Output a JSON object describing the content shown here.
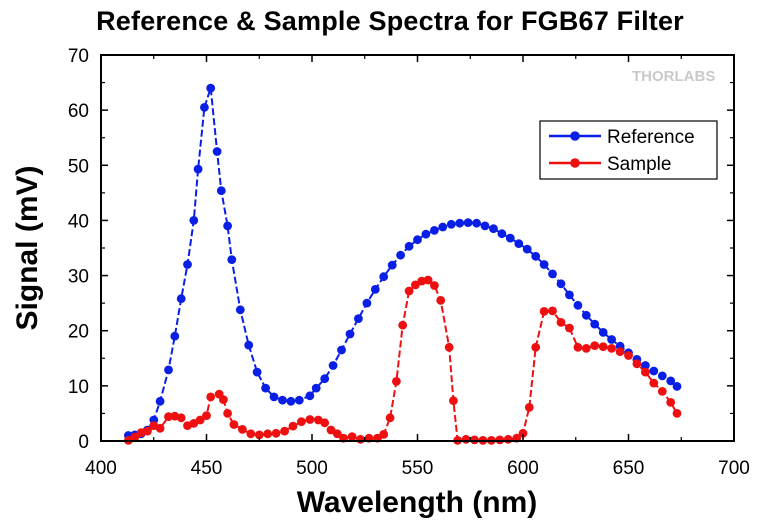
{
  "chart_data": {
    "type": "line",
    "title": "Reference & Sample Spectra for FGB67 Filter",
    "xlabel": "Wavelength (nm)",
    "ylabel": "Signal (mV)",
    "xlim": [
      400,
      700
    ],
    "ylim": [
      0,
      70
    ],
    "x_ticks": [
      "400",
      "450",
      "500",
      "550",
      "600",
      "650",
      "700"
    ],
    "y_ticks": [
      "0",
      "10",
      "20",
      "30",
      "40",
      "50",
      "60",
      "70"
    ],
    "grid": false,
    "legend_position": "top-right",
    "watermark": "THORLABS",
    "series": [
      {
        "name": "Reference",
        "color": "#0a1fe6",
        "points": [
          [
            413,
            1.0
          ],
          [
            416,
            1.1
          ],
          [
            419,
            1.3
          ],
          [
            422,
            2.0
          ],
          [
            425,
            3.8
          ],
          [
            428,
            7.2
          ],
          [
            432,
            12.9
          ],
          [
            435,
            19.0
          ],
          [
            438,
            25.8
          ],
          [
            441,
            32.0
          ],
          [
            444,
            40.0
          ],
          [
            446,
            49.3
          ],
          [
            449,
            60.5
          ],
          [
            452,
            64.0
          ],
          [
            455,
            52.5
          ],
          [
            457,
            45.4
          ],
          [
            460,
            39.0
          ],
          [
            462,
            32.9
          ],
          [
            466,
            23.8
          ],
          [
            470,
            17.4
          ],
          [
            474,
            12.5
          ],
          [
            478,
            9.6
          ],
          [
            482,
            8.0
          ],
          [
            486,
            7.4
          ],
          [
            490,
            7.2
          ],
          [
            494,
            7.4
          ],
          [
            499,
            8.2
          ],
          [
            502,
            9.6
          ],
          [
            506,
            11.3
          ],
          [
            510,
            13.7
          ],
          [
            514,
            16.5
          ],
          [
            518,
            19.4
          ],
          [
            522,
            22.2
          ],
          [
            526,
            25.0
          ],
          [
            530,
            27.5
          ],
          [
            534,
            29.8
          ],
          [
            538,
            31.9
          ],
          [
            542,
            33.7
          ],
          [
            546,
            35.3
          ],
          [
            550,
            36.5
          ],
          [
            554,
            37.5
          ],
          [
            558,
            38.2
          ],
          [
            562,
            38.8
          ],
          [
            566,
            39.3
          ],
          [
            570,
            39.5
          ],
          [
            574,
            39.6
          ],
          [
            578,
            39.5
          ],
          [
            582,
            39.0
          ],
          [
            586,
            38.5
          ],
          [
            590,
            37.6
          ],
          [
            594,
            36.8
          ],
          [
            598,
            35.8
          ],
          [
            602,
            34.8
          ],
          [
            606,
            33.5
          ],
          [
            610,
            32.0
          ],
          [
            614,
            30.3
          ],
          [
            618,
            28.5
          ],
          [
            622,
            26.5
          ],
          [
            626,
            24.6
          ],
          [
            630,
            22.8
          ],
          [
            634,
            21.2
          ],
          [
            638,
            19.7
          ],
          [
            642,
            18.4
          ],
          [
            646,
            17.2
          ],
          [
            650,
            16.0
          ],
          [
            654,
            14.8
          ],
          [
            658,
            13.7
          ],
          [
            662,
            12.7
          ],
          [
            666,
            11.8
          ],
          [
            670,
            10.9
          ],
          [
            673,
            9.9
          ]
        ]
      },
      {
        "name": "Sample",
        "color": "#ee1010",
        "points": [
          [
            413,
            0.1
          ],
          [
            416,
            0.7
          ],
          [
            419,
            1.5
          ],
          [
            422,
            1.8
          ],
          [
            425,
            2.8
          ],
          [
            428,
            2.3
          ],
          [
            432,
            4.4
          ],
          [
            435,
            4.5
          ],
          [
            438,
            4.2
          ],
          [
            441,
            2.8
          ],
          [
            444,
            3.2
          ],
          [
            447,
            3.8
          ],
          [
            450,
            4.6
          ],
          [
            452,
            8.0
          ],
          [
            456,
            8.5
          ],
          [
            458,
            7.5
          ],
          [
            460,
            5.0
          ],
          [
            463,
            3.0
          ],
          [
            467,
            2.1
          ],
          [
            471,
            1.3
          ],
          [
            475,
            1.1
          ],
          [
            479,
            1.3
          ],
          [
            483,
            1.4
          ],
          [
            487,
            1.8
          ],
          [
            491,
            2.7
          ],
          [
            495,
            3.5
          ],
          [
            499,
            3.9
          ],
          [
            503,
            3.8
          ],
          [
            506,
            3.3
          ],
          [
            509,
            2.0
          ],
          [
            512,
            1.3
          ],
          [
            515,
            0.5
          ],
          [
            519,
            0.8
          ],
          [
            523,
            0.3
          ],
          [
            527,
            0.5
          ],
          [
            531,
            0.5
          ],
          [
            534,
            1.2
          ],
          [
            537,
            4.2
          ],
          [
            540,
            10.8
          ],
          [
            543,
            21.0
          ],
          [
            546,
            27.2
          ],
          [
            549,
            28.3
          ],
          [
            552,
            29.0
          ],
          [
            555,
            29.2
          ],
          [
            558,
            28.2
          ],
          [
            561,
            25.5
          ],
          [
            565,
            17.0
          ],
          [
            567,
            7.3
          ],
          [
            569,
            0.1
          ],
          [
            573,
            0.3
          ],
          [
            577,
            0.2
          ],
          [
            581,
            0.1
          ],
          [
            585,
            0.1
          ],
          [
            589,
            0.2
          ],
          [
            593,
            0.3
          ],
          [
            597,
            0.5
          ],
          [
            600,
            1.4
          ],
          [
            603,
            6.1
          ],
          [
            606,
            17.0
          ],
          [
            610,
            23.5
          ],
          [
            614,
            23.6
          ],
          [
            618,
            21.5
          ],
          [
            622,
            20.5
          ],
          [
            626,
            17.0
          ],
          [
            630,
            16.8
          ],
          [
            634,
            17.3
          ],
          [
            638,
            17.1
          ],
          [
            642,
            16.8
          ],
          [
            646,
            16.2
          ],
          [
            650,
            15.5
          ],
          [
            654,
            14.0
          ],
          [
            658,
            12.5
          ],
          [
            662,
            10.5
          ],
          [
            666,
            9.0
          ],
          [
            670,
            7.0
          ],
          [
            673,
            5.0
          ]
        ]
      }
    ]
  }
}
